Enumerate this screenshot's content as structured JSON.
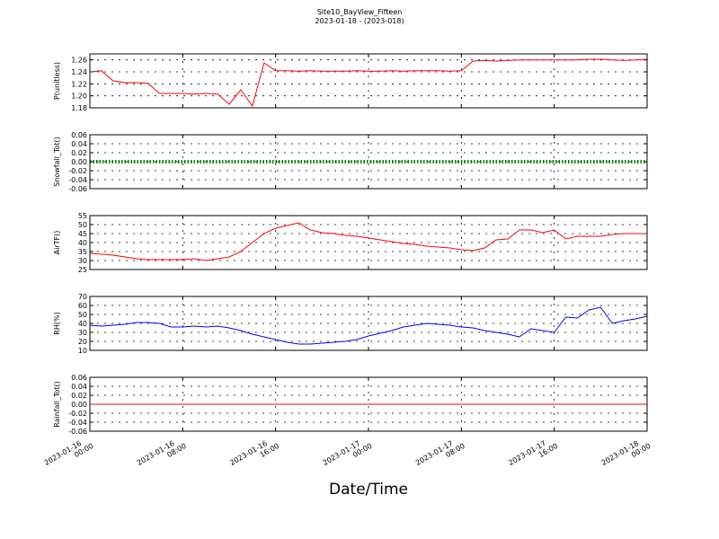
{
  "chart_data": [
    {
      "type": "line",
      "title": "Site10_BayView_Fifteen",
      "subtitle": "2023-01-18 - (2023-018)",
      "ylabel": "P(unitless)",
      "grid": true,
      "xlim": [
        "2023-01-16 00:00",
        "2023-01-18 00:00"
      ],
      "ylim": [
        1.18,
        1.27
      ],
      "yticks": [
        1.18,
        {
          "value": 1.2,
          "label": "1.20"
        },
        1.22,
        1.24,
        1.26
      ],
      "x": [
        "2023-01-16 00:00",
        "2023-01-16 01:00",
        "2023-01-16 02:00",
        "2023-01-16 03:00",
        "2023-01-16 04:00",
        "2023-01-16 05:00",
        "2023-01-16 06:00",
        "2023-01-16 07:00",
        "2023-01-16 08:00",
        "2023-01-16 09:00",
        "2023-01-16 10:00",
        "2023-01-16 11:00",
        "2023-01-16 12:00",
        "2023-01-16 13:00",
        "2023-01-16 14:00",
        "2023-01-16 15:00",
        "2023-01-16 16:00",
        "2023-01-16 17:00",
        "2023-01-16 18:00",
        "2023-01-16 19:00",
        "2023-01-16 20:00",
        "2023-01-16 21:00",
        "2023-01-16 22:00",
        "2023-01-16 23:00",
        "2023-01-17 00:00",
        "2023-01-17 01:00",
        "2023-01-17 02:00",
        "2023-01-17 03:00",
        "2023-01-17 04:00",
        "2023-01-17 05:00",
        "2023-01-17 06:00",
        "2023-01-17 07:00",
        "2023-01-17 08:00",
        "2023-01-17 09:00",
        "2023-01-17 10:00",
        "2023-01-17 11:00",
        "2023-01-17 12:00",
        "2023-01-17 13:00",
        "2023-01-17 14:00",
        "2023-01-17 15:00",
        "2023-01-17 16:00",
        "2023-01-17 17:00",
        "2023-01-17 18:00",
        "2023-01-17 19:00",
        "2023-01-17 20:00",
        "2023-01-17 21:00",
        "2023-01-17 22:00",
        "2023-01-17 23:00",
        "2023-01-18 00:00"
      ],
      "series": [
        {
          "color": "#ff0000",
          "style": "solid",
          "values": [
            1.24,
            1.242,
            1.225,
            1.222,
            1.222,
            1.221,
            1.204,
            1.204,
            1.204,
            1.203,
            1.204,
            1.203,
            1.186,
            1.21,
            1.183,
            1.255,
            1.242,
            1.242,
            1.241,
            1.242,
            1.241,
            1.241,
            1.241,
            1.242,
            1.241,
            1.241,
            1.242,
            1.241,
            1.242,
            1.242,
            1.242,
            1.241,
            1.242,
            1.258,
            1.259,
            1.258,
            1.259,
            1.26,
            1.26,
            1.26,
            1.26,
            1.26,
            1.26,
            1.261,
            1.261,
            1.26,
            1.259,
            1.26,
            1.261
          ]
        }
      ]
    },
    {
      "type": "line",
      "ylabel": "Snowfall_Tot()",
      "grid": true,
      "xlim": [
        "2023-01-16 00:00",
        "2023-01-18 00:00"
      ],
      "ylim": [
        -0.06,
        0.06
      ],
      "yticks": [
        -0.06,
        -0.04,
        -0.02,
        {
          "value": 0,
          "label": "0.00"
        },
        0.02,
        0.04,
        0.06
      ],
      "x": [
        "2023-01-16 00:00",
        "2023-01-16 01:00",
        "2023-01-16 02:00",
        "2023-01-16 03:00",
        "2023-01-16 04:00",
        "2023-01-16 05:00",
        "2023-01-16 06:00",
        "2023-01-16 07:00",
        "2023-01-16 08:00",
        "2023-01-16 09:00",
        "2023-01-16 10:00",
        "2023-01-16 11:00",
        "2023-01-16 12:00",
        "2023-01-16 13:00",
        "2023-01-16 14:00",
        "2023-01-16 15:00",
        "2023-01-16 16:00",
        "2023-01-16 17:00",
        "2023-01-16 18:00",
        "2023-01-16 19:00",
        "2023-01-16 20:00",
        "2023-01-16 21:00",
        "2023-01-16 22:00",
        "2023-01-16 23:00",
        "2023-01-17 00:00",
        "2023-01-17 01:00",
        "2023-01-17 02:00",
        "2023-01-17 03:00",
        "2023-01-17 04:00",
        "2023-01-17 05:00",
        "2023-01-17 06:00",
        "2023-01-17 07:00",
        "2023-01-17 08:00",
        "2023-01-17 09:00",
        "2023-01-17 10:00",
        "2023-01-17 11:00",
        "2023-01-17 12:00",
        "2023-01-17 13:00",
        "2023-01-17 14:00",
        "2023-01-17 15:00",
        "2023-01-17 16:00",
        "2023-01-17 17:00",
        "2023-01-17 18:00",
        "2023-01-17 19:00",
        "2023-01-17 20:00",
        "2023-01-17 21:00",
        "2023-01-17 22:00",
        "2023-01-17 23:00",
        "2023-01-18 00:00"
      ],
      "series": [
        {
          "color": "#008000",
          "style": "dotted",
          "values": [
            0,
            0,
            0,
            0,
            0,
            0,
            0,
            0,
            0,
            0,
            0,
            0,
            0,
            0,
            0,
            0,
            0,
            0,
            0,
            0,
            0,
            0,
            0,
            0,
            0,
            0,
            0,
            0,
            0,
            0,
            0,
            0,
            0,
            0,
            0,
            0,
            0,
            0,
            0,
            0,
            0,
            0,
            0,
            0,
            0,
            0,
            0,
            0,
            0
          ]
        }
      ]
    },
    {
      "type": "line",
      "ylabel": "AirTF()",
      "grid": true,
      "xlim": [
        "2023-01-16 00:00",
        "2023-01-18 00:00"
      ],
      "ylim": [
        25,
        55
      ],
      "yticks": [
        25,
        30,
        35,
        40,
        45,
        50,
        55
      ],
      "x": [
        "2023-01-16 00:00",
        "2023-01-16 01:00",
        "2023-01-16 02:00",
        "2023-01-16 03:00",
        "2023-01-16 04:00",
        "2023-01-16 05:00",
        "2023-01-16 06:00",
        "2023-01-16 07:00",
        "2023-01-16 08:00",
        "2023-01-16 09:00",
        "2023-01-16 10:00",
        "2023-01-16 11:00",
        "2023-01-16 12:00",
        "2023-01-16 13:00",
        "2023-01-16 14:00",
        "2023-01-16 15:00",
        "2023-01-16 16:00",
        "2023-01-16 17:00",
        "2023-01-16 18:00",
        "2023-01-16 19:00",
        "2023-01-16 20:00",
        "2023-01-16 21:00",
        "2023-01-16 22:00",
        "2023-01-16 23:00",
        "2023-01-17 00:00",
        "2023-01-17 01:00",
        "2023-01-17 02:00",
        "2023-01-17 03:00",
        "2023-01-17 04:00",
        "2023-01-17 05:00",
        "2023-01-17 06:00",
        "2023-01-17 07:00",
        "2023-01-17 08:00",
        "2023-01-17 09:00",
        "2023-01-17 10:00",
        "2023-01-17 11:00",
        "2023-01-17 12:00",
        "2023-01-17 13:00",
        "2023-01-17 14:00",
        "2023-01-17 15:00",
        "2023-01-17 16:00",
        "2023-01-17 17:00",
        "2023-01-17 18:00",
        "2023-01-17 19:00",
        "2023-01-17 20:00",
        "2023-01-17 21:00",
        "2023-01-17 22:00",
        "2023-01-17 23:00",
        "2023-01-18 00:00"
      ],
      "series": [
        {
          "color": "#ff0000",
          "style": "solid",
          "values": [
            34,
            33.5,
            33,
            32,
            31,
            30.5,
            30.5,
            30.5,
            30.5,
            31,
            30,
            31,
            32,
            35,
            40,
            45,
            48,
            49.5,
            51,
            47,
            45.5,
            45,
            44,
            43.5,
            42.5,
            41.5,
            40.5,
            39.5,
            39,
            38,
            37.5,
            37,
            36,
            35.5,
            37,
            41.5,
            42,
            47,
            47,
            45.5,
            47,
            42,
            43.5,
            43.5,
            43.5,
            44.5,
            45,
            45,
            45
          ]
        }
      ]
    },
    {
      "type": "line",
      "ylabel": "RH(%)",
      "grid": true,
      "xlim": [
        "2023-01-16 00:00",
        "2023-01-18 00:00"
      ],
      "ylim": [
        10,
        70
      ],
      "yticks": [
        10,
        20,
        30,
        40,
        50,
        60,
        70
      ],
      "x": [
        "2023-01-16 00:00",
        "2023-01-16 01:00",
        "2023-01-16 02:00",
        "2023-01-16 03:00",
        "2023-01-16 04:00",
        "2023-01-16 05:00",
        "2023-01-16 06:00",
        "2023-01-16 07:00",
        "2023-01-16 08:00",
        "2023-01-16 09:00",
        "2023-01-16 10:00",
        "2023-01-16 11:00",
        "2023-01-16 12:00",
        "2023-01-16 13:00",
        "2023-01-16 14:00",
        "2023-01-16 15:00",
        "2023-01-16 16:00",
        "2023-01-16 17:00",
        "2023-01-16 18:00",
        "2023-01-16 19:00",
        "2023-01-16 20:00",
        "2023-01-16 21:00",
        "2023-01-16 22:00",
        "2023-01-16 23:00",
        "2023-01-17 00:00",
        "2023-01-17 01:00",
        "2023-01-17 02:00",
        "2023-01-17 03:00",
        "2023-01-17 04:00",
        "2023-01-17 05:00",
        "2023-01-17 06:00",
        "2023-01-17 07:00",
        "2023-01-17 08:00",
        "2023-01-17 09:00",
        "2023-01-17 10:00",
        "2023-01-17 11:00",
        "2023-01-17 12:00",
        "2023-01-17 13:00",
        "2023-01-17 14:00",
        "2023-01-17 15:00",
        "2023-01-17 16:00",
        "2023-01-17 17:00",
        "2023-01-17 18:00",
        "2023-01-17 19:00",
        "2023-01-17 20:00",
        "2023-01-17 21:00",
        "2023-01-17 22:00",
        "2023-01-17 23:00",
        "2023-01-18 00:00"
      ],
      "series": [
        {
          "color": "#0000ff",
          "style": "solid",
          "values": [
            38,
            37,
            38,
            39,
            41,
            41,
            40,
            36,
            36,
            37,
            36,
            37,
            35,
            32,
            28,
            25,
            22,
            19,
            17,
            17,
            18,
            19,
            20,
            22,
            26,
            29,
            32,
            36,
            38,
            40,
            39,
            38,
            36,
            35,
            32,
            30,
            28,
            25,
            34,
            32,
            30,
            47,
            46,
            55,
            58,
            40,
            43,
            45,
            48
          ]
        }
      ]
    },
    {
      "type": "line",
      "ylabel": "Rainfall_Tot()",
      "xlabel": "Date/Time",
      "grid": true,
      "xlim": [
        "2023-01-16 00:00",
        "2023-01-18 00:00"
      ],
      "ylim": [
        -0.06,
        0.06
      ],
      "yticks": [
        -0.06,
        -0.04,
        -0.02,
        {
          "value": 0,
          "label": "0.00"
        },
        0.02,
        0.04,
        0.06
      ],
      "xticks": [
        {
          "value": "2023-01-16 00:00",
          "label": "2023-01-16\n00:00"
        },
        {
          "value": "2023-01-16 08:00",
          "label": "2023-01-16\n08:00"
        },
        {
          "value": "2023-01-16 16:00",
          "label": "2023-01-16\n16:00"
        },
        {
          "value": "2023-01-17 00:00",
          "label": "2023-01-17\n00:00"
        },
        {
          "value": "2023-01-17 08:00",
          "label": "2023-01-17\n08:00"
        },
        {
          "value": "2023-01-17 16:00",
          "label": "2023-01-17\n16:00"
        },
        {
          "value": "2023-01-18 00:00",
          "label": "2023-01-18\n00:00"
        }
      ],
      "x": [
        "2023-01-16 00:00",
        "2023-01-16 01:00",
        "2023-01-16 02:00",
        "2023-01-16 03:00",
        "2023-01-16 04:00",
        "2023-01-16 05:00",
        "2023-01-16 06:00",
        "2023-01-16 07:00",
        "2023-01-16 08:00",
        "2023-01-16 09:00",
        "2023-01-16 10:00",
        "2023-01-16 11:00",
        "2023-01-16 12:00",
        "2023-01-16 13:00",
        "2023-01-16 14:00",
        "2023-01-16 15:00",
        "2023-01-16 16:00",
        "2023-01-16 17:00",
        "2023-01-16 18:00",
        "2023-01-16 19:00",
        "2023-01-16 20:00",
        "2023-01-16 21:00",
        "2023-01-16 22:00",
        "2023-01-16 23:00",
        "2023-01-17 00:00",
        "2023-01-17 01:00",
        "2023-01-17 02:00",
        "2023-01-17 03:00",
        "2023-01-17 04:00",
        "2023-01-17 05:00",
        "2023-01-17 06:00",
        "2023-01-17 07:00",
        "2023-01-17 08:00",
        "2023-01-17 09:00",
        "2023-01-17 10:00",
        "2023-01-17 11:00",
        "2023-01-17 12:00",
        "2023-01-17 13:00",
        "2023-01-17 14:00",
        "2023-01-17 15:00",
        "2023-01-17 16:00",
        "2023-01-17 17:00",
        "2023-01-17 18:00",
        "2023-01-17 19:00",
        "2023-01-17 20:00",
        "2023-01-17 21:00",
        "2023-01-17 22:00",
        "2023-01-17 23:00",
        "2023-01-18 00:00"
      ],
      "series": [
        {
          "color": "#ff0000",
          "style": "solid",
          "values": [
            0,
            0,
            0,
            0,
            0,
            0,
            0,
            0,
            0,
            0,
            0,
            0,
            0,
            0,
            0,
            0,
            0,
            0,
            0,
            0,
            0,
            0,
            0,
            0,
            0,
            0,
            0,
            0,
            0,
            0,
            0,
            0,
            0,
            0,
            0,
            0,
            0,
            0,
            0,
            0,
            0,
            0,
            0,
            0,
            0,
            0,
            0,
            0,
            0
          ]
        }
      ]
    }
  ]
}
